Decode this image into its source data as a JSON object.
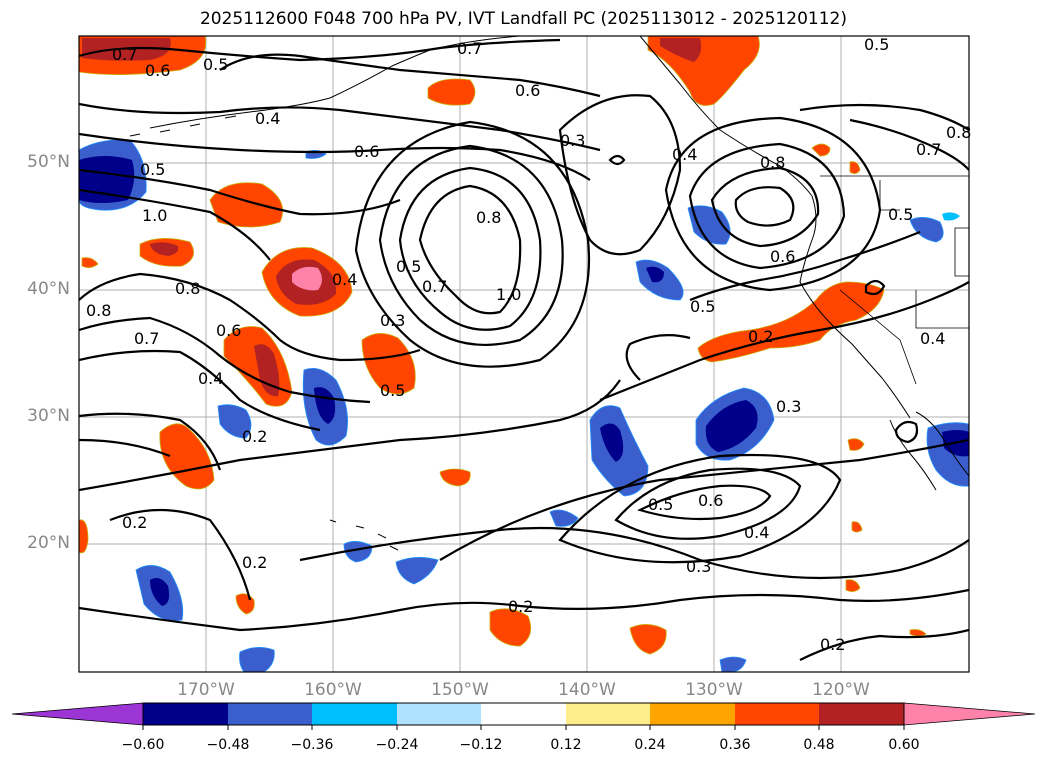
{
  "title": "2025112600 F048 700 hPa PV, IVT Landfall PC (2025113012 - 2025120112)",
  "map": {
    "lon_labels": [
      "170°W",
      "160°W",
      "150°W",
      "140°W",
      "130°W",
      "120°W"
    ],
    "lat_labels": [
      "50°N",
      "40°N",
      "30°N",
      "20°N"
    ],
    "contour_labels": [
      "0.7",
      "0.6",
      "0.5",
      "0.7",
      "0.5",
      "0.4",
      "0.6",
      "0.6",
      "0.3",
      "0.4",
      "0.8",
      "0.7",
      "0.5",
      "0.5",
      "1.0",
      "0.8",
      "0.4",
      "0.8",
      "0.5",
      "0.7",
      "1.0",
      "0.6",
      "0.5",
      "0.8",
      "0.3",
      "0.7",
      "0.6",
      "0.4",
      "0.5",
      "0.2",
      "0.3",
      "0.2",
      "0.5",
      "0.6",
      "0.4",
      "0.3",
      "0.2",
      "0.2",
      "0.2",
      "0.2",
      "0.8",
      "0.4"
    ]
  },
  "colorbar": {
    "tick_labels": [
      "−0.60",
      "−0.48",
      "−0.36",
      "−0.24",
      "−0.12",
      "0.12",
      "0.24",
      "0.36",
      "0.48",
      "0.60"
    ],
    "colors": [
      "#9b35d4",
      "#00008b",
      "#3a5fcd",
      "#00bfff",
      "#b0e2ff",
      "#ffffff",
      "#ffec8b",
      "#ffa500",
      "#ff4500",
      "#b22222",
      "#ff82ab"
    ]
  }
}
